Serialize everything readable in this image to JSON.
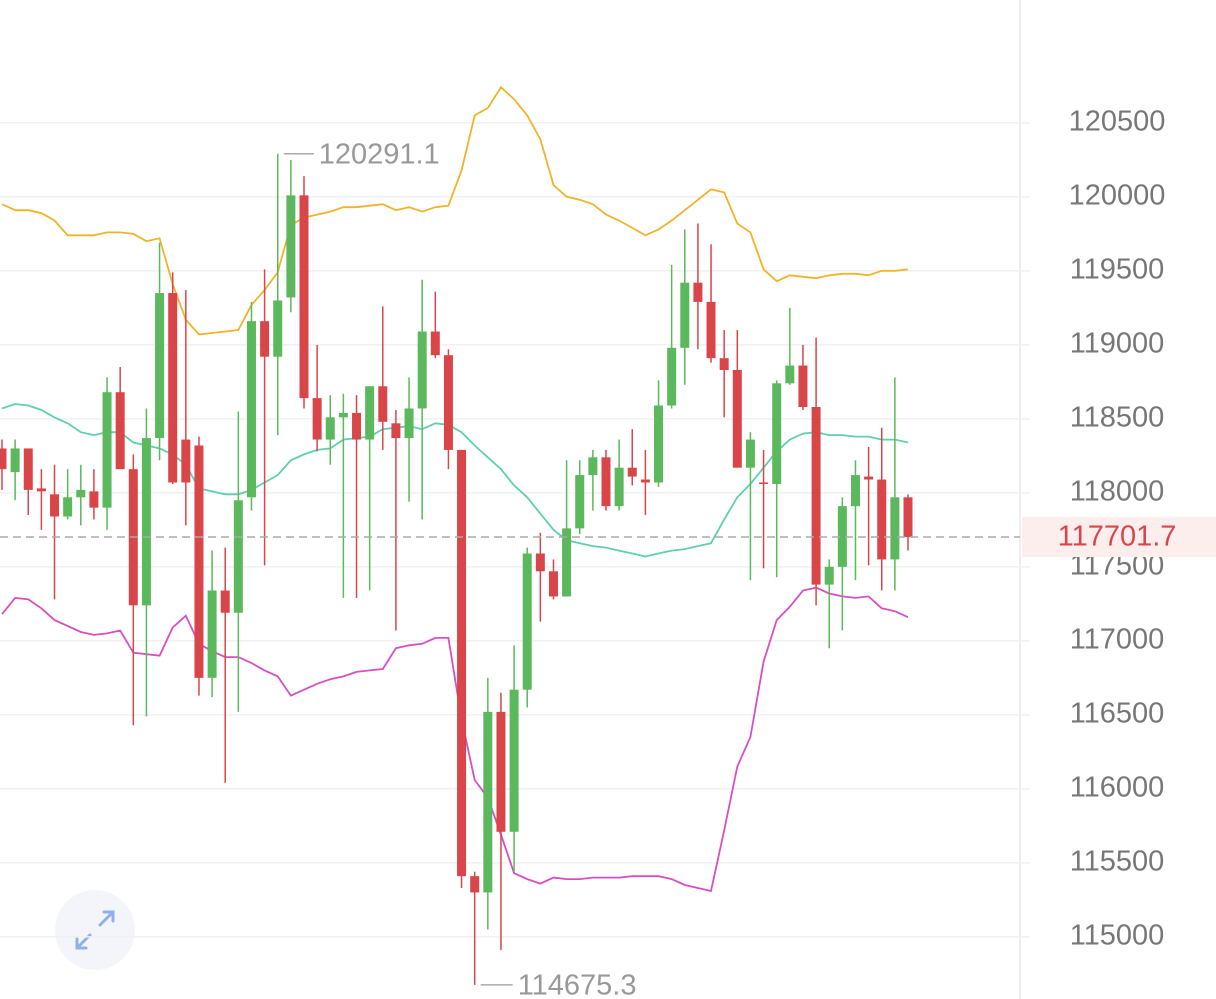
{
  "chart_data": {
    "type": "candlestick",
    "up_color": "#5cb85c",
    "down_color": "#d9464a",
    "ylim": [
      114580,
      121330
    ],
    "yticks": [
      115000,
      115500,
      116000,
      116500,
      117000,
      117500,
      118000,
      118500,
      119000,
      119500,
      120000,
      120500
    ],
    "grid": true,
    "candles": {
      "open": [
        118300,
        118140,
        118300,
        118030,
        117990,
        117840,
        117970,
        118010,
        117900,
        118680,
        118160,
        117240,
        118370,
        119350,
        118360,
        118320,
        116750,
        117340,
        117190,
        117970,
        119160,
        118920,
        119320,
        120010,
        118640,
        118360,
        118510,
        118540,
        118360,
        118720,
        118470,
        118370,
        118570,
        119090,
        118930,
        118290,
        115410,
        115300,
        116520,
        115710,
        116670,
        117590,
        117470,
        117300,
        117760,
        118120,
        118240,
        117910,
        118170,
        118090,
        118070,
        118590,
        118980,
        119420,
        119290,
        118910,
        118830,
        118170,
        118070,
        118060,
        118740,
        118860,
        118580,
        117380,
        117500,
        117910,
        118110,
        118090,
        117550,
        117970
      ],
      "close": [
        118160,
        118300,
        118020,
        118010,
        117840,
        117970,
        118020,
        117900,
        118680,
        118160,
        117240,
        118370,
        119350,
        118070,
        118070,
        116750,
        117340,
        117190,
        117950,
        119160,
        118920,
        119300,
        120010,
        118640,
        118360,
        118510,
        118540,
        118360,
        118720,
        118480,
        118370,
        118570,
        119090,
        118930,
        118290,
        115410,
        115300,
        116520,
        115710,
        116670,
        117590,
        117470,
        117300,
        117760,
        118120,
        118240,
        117910,
        118170,
        118110,
        118070,
        118590,
        118980,
        119420,
        119290,
        118910,
        118830,
        118170,
        118360,
        118060,
        118740,
        118860,
        118580,
        117380,
        117500,
        117910,
        118120,
        118090,
        117550,
        117970,
        117701.7
      ],
      "high": [
        118360,
        118360,
        118300,
        118160,
        118190,
        118160,
        118190,
        118160,
        118780,
        118850,
        118260,
        118570,
        119690,
        119490,
        119370,
        118380,
        117610,
        117630,
        118550,
        119290,
        119510,
        120291.1,
        120250,
        120140,
        119000,
        118660,
        118670,
        118660,
        118720,
        119260,
        118560,
        118780,
        119440,
        119360,
        118970,
        118290,
        115440,
        116750,
        116650,
        116970,
        117630,
        117730,
        117550,
        118220,
        118220,
        118290,
        118290,
        118360,
        118430,
        118290,
        118760,
        119540,
        119780,
        119820,
        119680,
        119100,
        119100,
        118410,
        118290,
        118760,
        119250,
        119000,
        119050,
        117550,
        117970,
        118220,
        118310,
        118440,
        118780,
        117990
      ],
      "low": [
        118020,
        117950,
        117850,
        117750,
        117280,
        117820,
        117780,
        117820,
        117750,
        118160,
        116430,
        116490,
        118220,
        118060,
        117780,
        116630,
        116620,
        116040,
        116520,
        117880,
        117510,
        118390,
        119220,
        118570,
        118280,
        118190,
        117290,
        117290,
        117340,
        118290,
        117070,
        117940,
        117820,
        118910,
        118160,
        115330,
        114675.3,
        115050,
        114910,
        115440,
        116550,
        117130,
        117280,
        117300,
        117720,
        117880,
        117880,
        117880,
        118050,
        117850,
        118040,
        118570,
        118730,
        118970,
        118880,
        118510,
        118170,
        117410,
        117490,
        117430,
        118730,
        118560,
        117240,
        116950,
        117070,
        117410,
        117510,
        117340,
        117340,
        117610
      ]
    },
    "series": [
      {
        "color": "#f0b429",
        "values": [
          119950,
          119910,
          119910,
          119890,
          119840,
          119740,
          119740,
          119740,
          119760,
          119760,
          119750,
          119700,
          119720,
          119410,
          119170,
          119070,
          119080,
          119090,
          119100,
          119270,
          119370,
          119490,
          119810,
          119860,
          119880,
          119900,
          119930,
          119930,
          119940,
          119950,
          119910,
          119930,
          119900,
          119930,
          119940,
          120180,
          120550,
          120600,
          120740,
          120660,
          120550,
          120390,
          120080,
          120000,
          119980,
          119950,
          119880,
          119840,
          119790,
          119740,
          119780,
          119840,
          119910,
          119980,
          120050,
          120030,
          119820,
          119760,
          119510,
          119430,
          119470,
          119460,
          119450,
          119470,
          119480,
          119480,
          119470,
          119500,
          119500,
          119510
        ]
      },
      {
        "color": "#5fcfb0",
        "values": [
          118570,
          118600,
          118590,
          118560,
          118510,
          118470,
          118410,
          118390,
          118410,
          118410,
          118340,
          118320,
          118300,
          118260,
          118190,
          118030,
          118010,
          117990,
          117990,
          118020,
          118070,
          118120,
          118220,
          118260,
          118290,
          118300,
          118360,
          118370,
          118380,
          118430,
          118440,
          118450,
          118430,
          118470,
          118460,
          118410,
          118320,
          118240,
          118160,
          118050,
          117970,
          117860,
          117750,
          117680,
          117660,
          117640,
          117630,
          117610,
          117590,
          117570,
          117590,
          117610,
          117620,
          117640,
          117660,
          117820,
          117970,
          118060,
          118170,
          118280,
          118360,
          118400,
          118410,
          118390,
          118390,
          118380,
          118380,
          118360,
          118360,
          118340
        ]
      },
      {
        "color": "#d64fc3",
        "values": [
          117180,
          117290,
          117280,
          117220,
          117140,
          117100,
          117060,
          117040,
          117050,
          117070,
          116920,
          116910,
          116900,
          117090,
          117170,
          116980,
          116930,
          116890,
          116890,
          116850,
          116800,
          116760,
          116630,
          116670,
          116710,
          116740,
          116760,
          116790,
          116800,
          116810,
          116950,
          116970,
          116980,
          117020,
          117020,
          116470,
          116060,
          115940,
          115690,
          115430,
          115390,
          115360,
          115400,
          115390,
          115390,
          115400,
          115400,
          115400,
          115410,
          115410,
          115410,
          115390,
          115350,
          115330,
          115310,
          115720,
          116150,
          116350,
          116860,
          117140,
          117230,
          117340,
          117360,
          117320,
          117300,
          117290,
          117300,
          117220,
          117200,
          117160
        ]
      }
    ]
  }
}
